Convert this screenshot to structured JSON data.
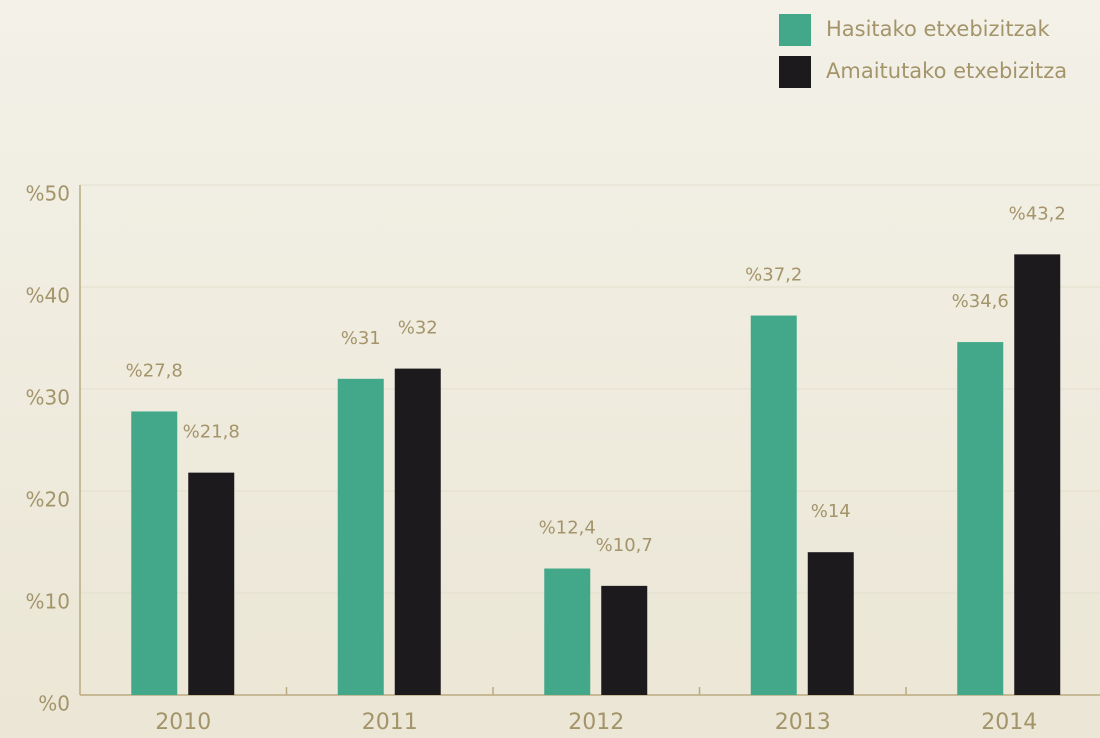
{
  "chart_data": {
    "type": "bar",
    "categories": [
      "2010",
      "2011",
      "2012",
      "2013",
      "2014"
    ],
    "series": [
      {
        "name": "Hasitako etxebizitzak",
        "color": "#43a88a",
        "values": [
          27.8,
          31,
          12.4,
          37.2,
          34.6
        ],
        "value_labels": [
          "%27,8",
          "%31",
          "%12,4",
          "%37,2",
          "%34,6"
        ]
      },
      {
        "name": "Amaitutako etxebizitza",
        "color": "#1d1a1e",
        "values": [
          21.8,
          32,
          10.7,
          14,
          43.2
        ],
        "value_labels": [
          "%21,8",
          "%32",
          "%10,7",
          "%14",
          "%43,2"
        ]
      }
    ],
    "ylim": [
      0,
      50
    ],
    "yticks": [
      {
        "value": 0,
        "label": "%0"
      },
      {
        "value": 10,
        "label": "%10"
      },
      {
        "value": 20,
        "label": "%20"
      },
      {
        "value": 30,
        "label": "%30"
      },
      {
        "value": 40,
        "label": "%40"
      },
      {
        "value": 50,
        "label": "%50"
      }
    ],
    "grid": true,
    "legend": "top-right"
  }
}
